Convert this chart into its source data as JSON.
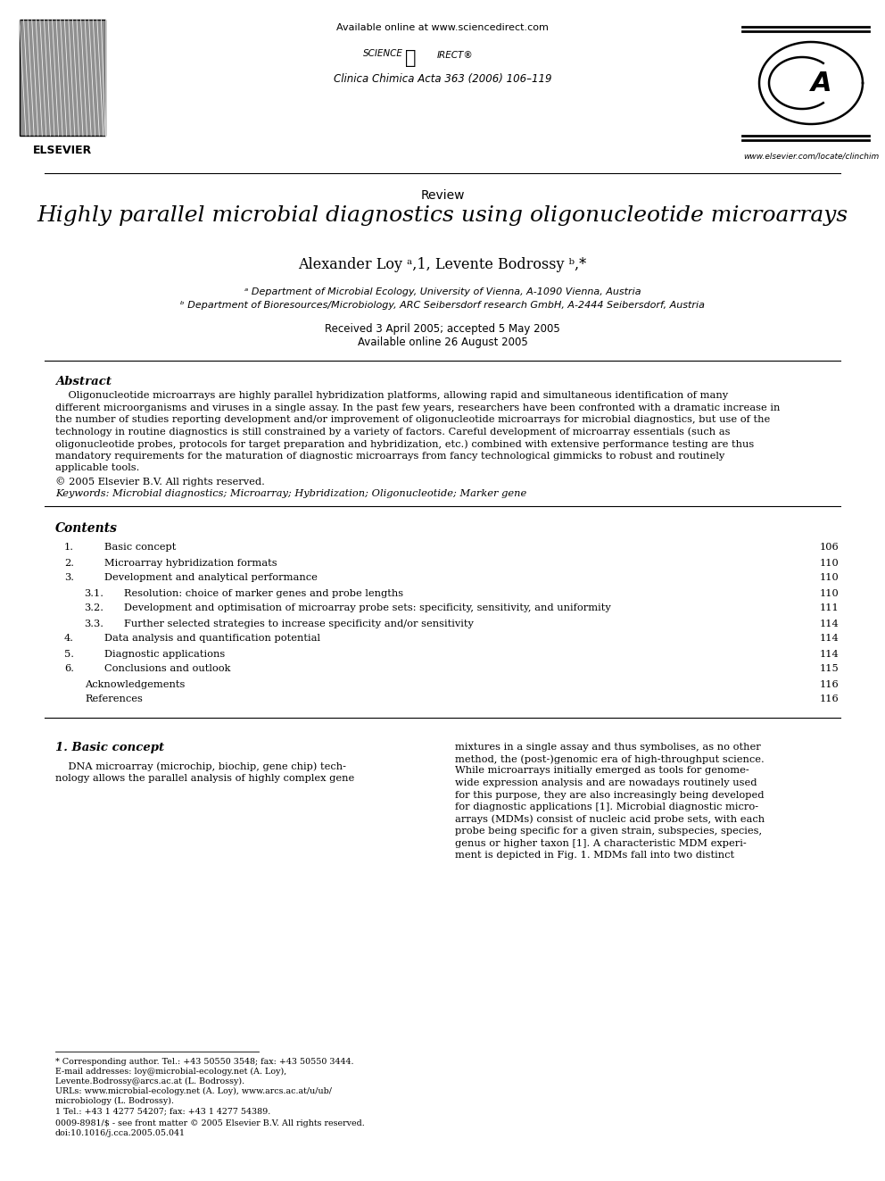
{
  "bg_color": "#ffffff",
  "page_width": 9.92,
  "page_height": 13.23,
  "header_available_online": "Available online at www.sciencedirect.com",
  "journal_name": "Clinica Chimica Acta 363 (2006) 106–119",
  "journal_url": "www.elsevier.com/locate/clinchim",
  "section_label": "Review",
  "title": "Highly parallel microbial diagnostics using oligonucleotide microarrays",
  "authors_text": "Alexander Loy ᵃ,1, Levente Bodrossy ᵇ,*",
  "affil_a": "ᵃ Department of Microbial Ecology, University of Vienna, A-1090 Vienna, Austria",
  "affil_b": "ᵇ Department of Bioresources/Microbiology, ARC Seibersdorf research GmbH, A-2444 Seibersdorf, Austria",
  "received": "Received 3 April 2005; accepted 5 May 2005",
  "available": "Available online 26 August 2005",
  "abstract_title": "Abstract",
  "abstract_line1": "    Oligonucleotide microarrays are highly parallel hybridization platforms, allowing rapid and simultaneous identification of many",
  "abstract_line2": "different microorganisms and viruses in a single assay. In the past few years, researchers have been confronted with a dramatic increase in",
  "abstract_line3": "the number of studies reporting development and/or improvement of oligonucleotide microarrays for microbial diagnostics, but use of the",
  "abstract_line4": "technology in routine diagnostics is still constrained by a variety of factors. Careful development of microarray essentials (such as",
  "abstract_line5": "oligonucleotide probes, protocols for target preparation and hybridization, etc.) combined with extensive performance testing are thus",
  "abstract_line6": "mandatory requirements for the maturation of diagnostic microarrays from fancy technological gimmicks to robust and routinely",
  "abstract_line7": "applicable tools.",
  "copyright_text": "© 2005 Elsevier B.V. All rights reserved.",
  "keywords_text": "Keywords: Microbial diagnostics; Microarray; Hybridization; Oligonucleotide; Marker gene",
  "contents_title": "Contents",
  "toc_entries": [
    {
      "num": "1.",
      "text": "Basic concept",
      "page": "106",
      "indent": 0
    },
    {
      "num": "2.",
      "text": "Microarray hybridization formats",
      "page": "110",
      "indent": 0
    },
    {
      "num": "3.",
      "text": "Development and analytical performance",
      "page": "110",
      "indent": 0
    },
    {
      "num": "3.1.",
      "text": "Resolution: choice of marker genes and probe lengths",
      "page": "110",
      "indent": 1
    },
    {
      "num": "3.2.",
      "text": "Development and optimisation of microarray probe sets: specificity, sensitivity, and uniformity",
      "page": "111",
      "indent": 1
    },
    {
      "num": "3.3.",
      "text": "Further selected strategies to increase specificity and/or sensitivity",
      "page": "114",
      "indent": 1
    },
    {
      "num": "4.",
      "text": "Data analysis and quantification potential",
      "page": "114",
      "indent": 0
    },
    {
      "num": "5.",
      "text": "Diagnostic applications",
      "page": "114",
      "indent": 0
    },
    {
      "num": "6.",
      "text": "Conclusions and outlook",
      "page": "115",
      "indent": 0
    },
    {
      "num": "",
      "text": "Acknowledgements",
      "page": "116",
      "indent": 0
    },
    {
      "num": "",
      "text": "References",
      "page": "116",
      "indent": 0
    }
  ],
  "body_section1_title": "1. Basic concept",
  "body_col1_line1": "    DNA microarray (microchip, biochip, gene chip) tech-",
  "body_col1_line2": "nology allows the parallel analysis of highly complex gene",
  "body_col2_line1": "mixtures in a single assay and thus symbolises, as no other",
  "body_col2_line2": "method, the (post-)genomic era of high-throughput science.",
  "body_col2_line3": "While microarrays initially emerged as tools for genome-",
  "body_col2_line4": "wide expression analysis and are nowadays routinely used",
  "body_col2_line5": "for this purpose, they are also increasingly being developed",
  "body_col2_line6": "for diagnostic applications [1]. Microbial diagnostic micro-",
  "body_col2_line7": "arrays (MDMs) consist of nucleic acid probe sets, with each",
  "body_col2_line8": "probe being specific for a given strain, subspecies, species,",
  "body_col2_line9": "genus or higher taxon [1]. A characteristic MDM experi-",
  "body_col2_line10": "ment is depicted in Fig. 1. MDMs fall into two distinct",
  "fn_corr": "* Corresponding author. Tel.: +43 50550 3548; fax: +43 50550 3444.",
  "fn_email": "E-mail addresses: loy@microbial-ecology.net (A. Loy),",
  "fn_email2": "Levente.Bodrossy@arcs.ac.at (L. Bodrossy).",
  "fn_url": "URLs: www.microbial-ecology.net (A. Loy), www.arcs.ac.at/u/ub/",
  "fn_url2": "microbiology (L. Bodrossy).",
  "fn_1": "1 Tel.: +43 1 4277 54207; fax: +43 1 4277 54389.",
  "fn_bottom1": "0009-8981/$ - see front matter © 2005 Elsevier B.V. All rights reserved.",
  "fn_bottom2": "doi:10.1016/j.cca.2005.05.041"
}
